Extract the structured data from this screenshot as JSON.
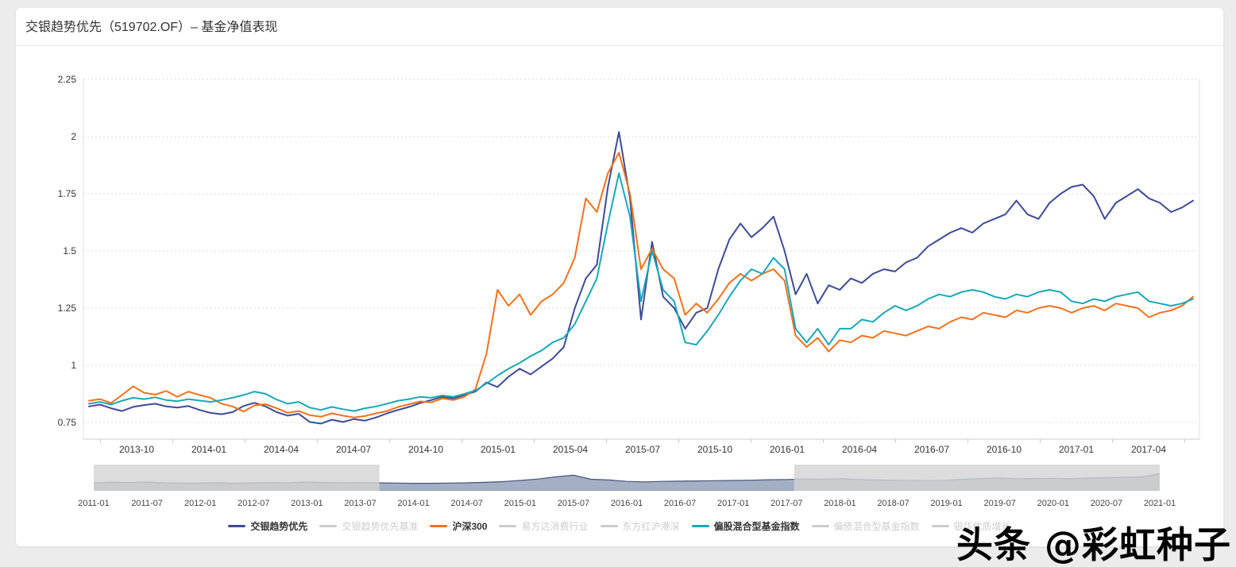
{
  "page": {
    "background": "#ececec",
    "card_background": "#ffffff"
  },
  "header": {
    "title": "交银趋势优先（519702.OF）– 基金净值表现"
  },
  "watermark": {
    "text": "头条 @彩虹种子"
  },
  "legend": {
    "items": [
      {
        "key": "jiaoyin-qushi-youxian",
        "label": "交银趋势优先",
        "color": "#3d4b96",
        "active": true
      },
      {
        "key": "jiaoyin-benchmark",
        "label": "交银趋势优先基准",
        "color": "#cccccc",
        "active": false
      },
      {
        "key": "hs300",
        "label": "沪深300",
        "color": "#f2711c",
        "active": true
      },
      {
        "key": "yifangda-xiaofei",
        "label": "易方达消费行业",
        "color": "#cccccc",
        "active": false
      },
      {
        "key": "dongfanghong-hgs",
        "label": "东方红沪港深",
        "color": "#cccccc",
        "active": false
      },
      {
        "key": "piangu-hunhe-index",
        "label": "偏股混合型基金指数",
        "color": "#18a8b8",
        "active": true
      },
      {
        "key": "pianzhai-hunhe-index",
        "label": "偏债混合型基金指数",
        "color": "#cccccc",
        "active": false
      },
      {
        "key": "yinhua-youzhi",
        "label": "银华优质增长",
        "color": "#cccccc",
        "active": false
      }
    ]
  },
  "chart_data": {
    "type": "line",
    "title": "基金净值表现",
    "grid": true,
    "legend_position": "bottom",
    "visible_range": {
      "start": "2013-08",
      "end": "2017-06"
    },
    "y_axis": {
      "min": 0.68,
      "max": 2.25,
      "ticks": [
        {
          "value": 2.25,
          "label": "2.25"
        },
        {
          "value": 2.0,
          "label": "2"
        },
        {
          "value": 1.75,
          "label": "1.75"
        },
        {
          "value": 1.5,
          "label": "1.5"
        },
        {
          "value": 1.25,
          "label": "1.25"
        },
        {
          "value": 1.0,
          "label": "1"
        },
        {
          "value": 0.75,
          "label": "0.75"
        }
      ]
    },
    "x_axis": {
      "labels": [
        "2013-10",
        "2014-01",
        "2014-04",
        "2014-07",
        "2014-10",
        "2015-01",
        "2015-04",
        "2015-07",
        "2015-10",
        "2016-01",
        "2016-04",
        "2016-07",
        "2016-10",
        "2017-01",
        "2017-04"
      ]
    },
    "series": [
      {
        "key": "jiaoyin-qushi-youxian",
        "name": "交银趋势优先",
        "color": "#3d4b96",
        "values": [
          0.82,
          0.828,
          0.812,
          0.8,
          0.818,
          0.826,
          0.832,
          0.82,
          0.815,
          0.822,
          0.805,
          0.792,
          0.786,
          0.795,
          0.822,
          0.836,
          0.82,
          0.795,
          0.78,
          0.788,
          0.752,
          0.745,
          0.762,
          0.752,
          0.765,
          0.758,
          0.772,
          0.79,
          0.805,
          0.818,
          0.835,
          0.848,
          0.862,
          0.855,
          0.87,
          0.885,
          0.925,
          0.905,
          0.95,
          0.985,
          0.96,
          0.995,
          1.03,
          1.08,
          1.25,
          1.38,
          1.44,
          1.78,
          2.02,
          1.73,
          1.2,
          1.54,
          1.3,
          1.25,
          1.16,
          1.23,
          1.25,
          1.42,
          1.55,
          1.62,
          1.56,
          1.6,
          1.65,
          1.5,
          1.31,
          1.4,
          1.27,
          1.35,
          1.33,
          1.38,
          1.36,
          1.4,
          1.42,
          1.41,
          1.45,
          1.47,
          1.52,
          1.55,
          1.58,
          1.6,
          1.58,
          1.62,
          1.64,
          1.66,
          1.72,
          1.66,
          1.64,
          1.71,
          1.75,
          1.78,
          1.79,
          1.74,
          1.64,
          1.71,
          1.74,
          1.77,
          1.73,
          1.71,
          1.67,
          1.69,
          1.72
        ]
      },
      {
        "key": "hs300",
        "name": "沪深300",
        "color": "#f2711c",
        "values": [
          0.845,
          0.852,
          0.835,
          0.87,
          0.908,
          0.88,
          0.872,
          0.888,
          0.862,
          0.885,
          0.87,
          0.858,
          0.832,
          0.82,
          0.798,
          0.825,
          0.83,
          0.812,
          0.792,
          0.8,
          0.782,
          0.775,
          0.79,
          0.78,
          0.772,
          0.778,
          0.79,
          0.8,
          0.818,
          0.83,
          0.842,
          0.838,
          0.855,
          0.848,
          0.862,
          0.895,
          1.05,
          1.33,
          1.26,
          1.31,
          1.22,
          1.28,
          1.31,
          1.36,
          1.47,
          1.73,
          1.67,
          1.84,
          1.93,
          1.75,
          1.42,
          1.51,
          1.42,
          1.38,
          1.22,
          1.27,
          1.23,
          1.29,
          1.36,
          1.4,
          1.37,
          1.4,
          1.42,
          1.37,
          1.13,
          1.08,
          1.12,
          1.06,
          1.11,
          1.1,
          1.13,
          1.12,
          1.15,
          1.14,
          1.13,
          1.15,
          1.17,
          1.16,
          1.19,
          1.21,
          1.2,
          1.23,
          1.22,
          1.21,
          1.24,
          1.23,
          1.25,
          1.26,
          1.25,
          1.23,
          1.25,
          1.26,
          1.24,
          1.27,
          1.26,
          1.25,
          1.21,
          1.23,
          1.24,
          1.26,
          1.3
        ]
      },
      {
        "key": "piangu-hunhe-index",
        "name": "偏股混合型基金指数",
        "color": "#18a8b8",
        "values": [
          0.832,
          0.84,
          0.828,
          0.845,
          0.858,
          0.852,
          0.86,
          0.848,
          0.843,
          0.852,
          0.846,
          0.84,
          0.848,
          0.858,
          0.87,
          0.885,
          0.875,
          0.85,
          0.832,
          0.84,
          0.815,
          0.805,
          0.818,
          0.808,
          0.8,
          0.812,
          0.82,
          0.832,
          0.845,
          0.852,
          0.862,
          0.858,
          0.868,
          0.862,
          0.875,
          0.89,
          0.92,
          0.955,
          0.985,
          1.01,
          1.04,
          1.065,
          1.1,
          1.12,
          1.18,
          1.28,
          1.38,
          1.62,
          1.84,
          1.65,
          1.28,
          1.5,
          1.33,
          1.28,
          1.1,
          1.09,
          1.15,
          1.22,
          1.3,
          1.37,
          1.42,
          1.4,
          1.47,
          1.42,
          1.16,
          1.1,
          1.16,
          1.09,
          1.16,
          1.16,
          1.2,
          1.19,
          1.23,
          1.26,
          1.24,
          1.26,
          1.29,
          1.31,
          1.3,
          1.32,
          1.33,
          1.32,
          1.3,
          1.29,
          1.31,
          1.3,
          1.32,
          1.33,
          1.32,
          1.28,
          1.27,
          1.29,
          1.28,
          1.3,
          1.31,
          1.32,
          1.28,
          1.27,
          1.26,
          1.27,
          1.29
        ]
      }
    ],
    "hidden_series": [
      "交银趋势优先基准",
      "易方达消费行业",
      "东方红沪港深",
      "偏债混合型基金指数",
      "银华优质增长"
    ],
    "datazoom": {
      "labels": [
        "2011-01",
        "2011-07",
        "2012-01",
        "2012-07",
        "2013-01",
        "2013-07",
        "2014-01",
        "2014-07",
        "2015-01",
        "2015-07",
        "2016-01",
        "2016-07",
        "2017-01",
        "2017-07",
        "2018-01",
        "2018-07",
        "2019-01",
        "2019-07",
        "2020-01",
        "2020-07",
        "2021-01"
      ],
      "window": {
        "start_frac": 0.268,
        "end_frac": 0.657,
        "start": "2013-08",
        "end": "2017-07"
      },
      "area_color": "#5a6d94",
      "line_color": "#42567c",
      "mask_color": "#d3d3d3",
      "area_values": [
        0.3,
        0.32,
        0.31,
        0.33,
        0.3,
        0.29,
        0.29,
        0.3,
        0.28,
        0.3,
        0.31,
        0.3,
        0.33,
        0.31,
        0.3,
        0.31,
        0.3,
        0.29,
        0.28,
        0.28,
        0.29,
        0.3,
        0.32,
        0.35,
        0.4,
        0.46,
        0.55,
        0.62,
        0.45,
        0.42,
        0.36,
        0.34,
        0.36,
        0.37,
        0.38,
        0.39,
        0.4,
        0.41,
        0.43,
        0.44,
        0.46,
        0.45,
        0.47,
        0.44,
        0.42,
        0.41,
        0.4,
        0.39,
        0.41,
        0.45,
        0.48,
        0.5,
        0.47,
        0.48,
        0.49,
        0.47,
        0.5,
        0.52,
        0.53,
        0.55,
        0.68
      ]
    }
  }
}
